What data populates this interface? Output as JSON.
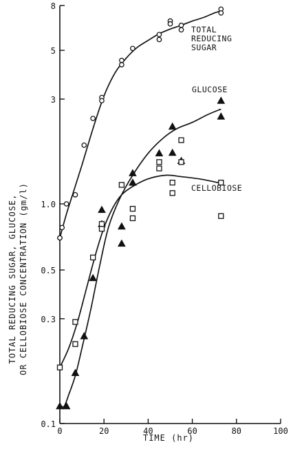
{
  "chart_data": {
    "type": "scatter",
    "xlabel": "TIME (hr)",
    "ylabel_lines": [
      "TOTAL REDUCING SUGAR, GLUCOSE,",
      "OR CELLOBIOSE CONCENTRATION (gm/l)"
    ],
    "xlim": [
      0,
      100
    ],
    "ylim": [
      0.1,
      8
    ],
    "yscale": "log",
    "x_ticks": [
      0,
      20,
      40,
      60,
      80,
      100
    ],
    "x_tick_labels": [
      "0",
      "20",
      "40",
      "60",
      "80",
      "100"
    ],
    "y_ticks": [
      0.1,
      0.3,
      0.5,
      1.0,
      3,
      5,
      8
    ],
    "y_tick_labels": [
      "0.1",
      "0.3",
      "0.5",
      "1.0",
      "3",
      "5",
      "8"
    ],
    "grid": false,
    "legend": "none",
    "series": [
      {
        "name": "TOTAL REDUCING SUGAR",
        "label_lines": [
          "TOTAL",
          "REDUCING",
          "SUGAR"
        ],
        "marker": "circle",
        "points": [
          [
            0,
            0.7
          ],
          [
            0,
            0.7
          ],
          [
            1,
            0.78
          ],
          [
            3,
            1.0
          ],
          [
            7,
            1.1
          ],
          [
            11,
            1.85
          ],
          [
            15,
            2.45
          ],
          [
            19,
            3.05
          ],
          [
            19,
            2.95
          ],
          [
            28,
            4.5
          ],
          [
            28,
            4.3
          ],
          [
            33,
            5.1
          ],
          [
            45,
            5.9
          ],
          [
            45,
            5.6
          ],
          [
            50,
            6.8
          ],
          [
            50,
            6.6
          ],
          [
            55,
            6.5
          ],
          [
            55,
            6.2
          ],
          [
            73,
            7.7
          ],
          [
            73,
            7.4
          ]
        ],
        "curve": [
          [
            0,
            0.7
          ],
          [
            3,
            0.9
          ],
          [
            6,
            1.12
          ],
          [
            10,
            1.5
          ],
          [
            15,
            2.2
          ],
          [
            20,
            3.1
          ],
          [
            25,
            3.95
          ],
          [
            30,
            4.6
          ],
          [
            35,
            5.15
          ],
          [
            40,
            5.55
          ],
          [
            45,
            5.95
          ],
          [
            50,
            6.25
          ],
          [
            55,
            6.5
          ],
          [
            60,
            6.8
          ],
          [
            65,
            7.05
          ],
          [
            70,
            7.4
          ],
          [
            73,
            7.55
          ]
        ]
      },
      {
        "name": "GLUCOSE",
        "label_lines": [
          "GLUCOSE"
        ],
        "marker": "triangle",
        "points": [
          [
            0,
            0.12
          ],
          [
            3,
            0.12
          ],
          [
            7,
            0.17
          ],
          [
            11,
            0.25
          ],
          [
            15,
            0.46
          ],
          [
            19,
            0.94
          ],
          [
            19,
            0.81
          ],
          [
            28,
            0.79
          ],
          [
            28,
            0.66
          ],
          [
            33,
            1.38
          ],
          [
            33,
            1.25
          ],
          [
            45,
            1.7
          ],
          [
            51,
            1.71
          ],
          [
            51,
            2.25
          ],
          [
            55,
            1.57
          ],
          [
            73,
            2.95
          ],
          [
            73,
            2.5
          ]
        ],
        "curve": [
          [
            0,
            0.12
          ],
          [
            2,
            0.12
          ],
          [
            4,
            0.135
          ],
          [
            7,
            0.165
          ],
          [
            10,
            0.22
          ],
          [
            14,
            0.33
          ],
          [
            18,
            0.52
          ],
          [
            22,
            0.78
          ],
          [
            27,
            1.05
          ],
          [
            33,
            1.35
          ],
          [
            40,
            1.7
          ],
          [
            47,
            2.0
          ],
          [
            53,
            2.2
          ],
          [
            60,
            2.35
          ],
          [
            67,
            2.55
          ],
          [
            73,
            2.7
          ]
        ]
      },
      {
        "name": "CELLOBIOSE",
        "label_lines": [
          "CELLOBIOSE"
        ],
        "marker": "square",
        "points": [
          [
            0,
            0.18
          ],
          [
            7,
            0.29
          ],
          [
            7,
            0.23
          ],
          [
            15,
            0.57
          ],
          [
            19,
            0.81
          ],
          [
            19,
            0.77
          ],
          [
            28,
            1.22
          ],
          [
            33,
            0.95
          ],
          [
            33,
            0.86
          ],
          [
            45,
            1.55
          ],
          [
            45,
            1.45
          ],
          [
            51,
            1.25
          ],
          [
            51,
            1.12
          ],
          [
            55,
            1.95
          ],
          [
            55,
            1.55
          ],
          [
            73,
            1.25
          ],
          [
            73,
            0.88
          ]
        ],
        "curve": [
          [
            0,
            0.18
          ],
          [
            4,
            0.22
          ],
          [
            8,
            0.29
          ],
          [
            12,
            0.41
          ],
          [
            16,
            0.58
          ],
          [
            20,
            0.78
          ],
          [
            24,
            0.96
          ],
          [
            28,
            1.1
          ],
          [
            33,
            1.2
          ],
          [
            40,
            1.3
          ],
          [
            48,
            1.35
          ],
          [
            55,
            1.33
          ],
          [
            63,
            1.3
          ],
          [
            70,
            1.26
          ],
          [
            73,
            1.24
          ]
        ]
      }
    ]
  }
}
